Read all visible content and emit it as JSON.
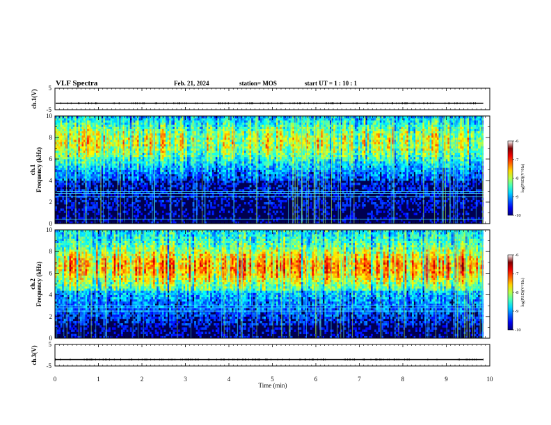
{
  "header": {
    "title": "VLF Spectra",
    "date": "Feb. 21, 2024",
    "station": "station= MOS",
    "start": "start  UT =   1 : 10 : 1"
  },
  "chart_data": [
    {
      "type": "line",
      "id": "ch1-waveform",
      "ylabel": "ch.1(V)",
      "ylim": [
        -5,
        5
      ],
      "yticks": [
        "5",
        "-5"
      ],
      "xlim": [
        0,
        10
      ],
      "value": -2.0
    },
    {
      "type": "heatmap",
      "id": "ch1-spectrogram",
      "ylabel": "ch.1",
      "ylabel2": "Frequency (kHz)",
      "ylim": [
        0,
        10
      ],
      "yticks": [
        "0",
        "2",
        "4",
        "6",
        "8",
        "10"
      ],
      "xlim": [
        0,
        10
      ],
      "data_end": 9.85,
      "colorbar": {
        "label": "log(PSD)(V²/Hz)",
        "range": [
          -10,
          -6
        ],
        "ticks": [
          "-6",
          "-7",
          "-8",
          "-9",
          "-10"
        ]
      },
      "hum_lines_khz": [
        0.4,
        2.5,
        2.8,
        3.0
      ]
    },
    {
      "type": "heatmap",
      "id": "ch2-spectrogram",
      "ylabel": "ch.2",
      "ylabel2": "Frequency (kHz)",
      "ylim": [
        0,
        10
      ],
      "yticks": [
        "0",
        "2",
        "4",
        "6",
        "8",
        "10"
      ],
      "xlim": [
        0,
        10
      ],
      "data_end": 9.85,
      "colorbar": {
        "label": "log(PSD)(V²/Hz)",
        "range": [
          -10,
          -6
        ],
        "ticks": [
          "-6",
          "-7",
          "-8",
          "-9",
          "-10"
        ]
      },
      "hum_lines_khz": [
        2.5,
        2.8,
        3.0
      ]
    },
    {
      "type": "line",
      "id": "ch3-waveform",
      "ylabel": "ch.3(V)",
      "ylim": [
        -5,
        5
      ],
      "yticks": [
        "5",
        "-5"
      ],
      "xlim": [
        0,
        10
      ],
      "value": -2.0
    }
  ],
  "x_axis": {
    "label": "Time  (min)",
    "ticks": [
      "0",
      "1",
      "2",
      "3",
      "4",
      "5",
      "6",
      "7",
      "8",
      "9",
      "10"
    ]
  }
}
